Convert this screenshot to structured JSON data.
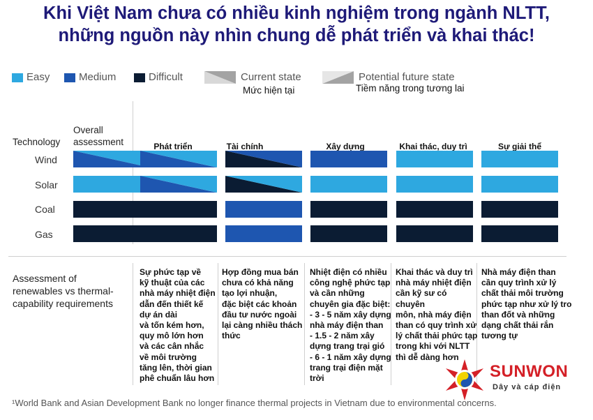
{
  "title": {
    "line1": "Khi Việt Nam chưa có nhiều kinh nghiệm trong ngành NLTT,",
    "line2": "những nguồn này nhìn chung dễ phát triển và khai thác!"
  },
  "legend": {
    "easy": "Easy",
    "medium": "Medium",
    "difficult": "Difficult",
    "current_state": "Current state",
    "current_state_vi": "Mức hiện tại",
    "future_state": "Potential future state",
    "future_state_vi": "Tiềm năng trong tương lai"
  },
  "colors": {
    "easy": "#2ea8e0",
    "medium": "#1e56b0",
    "difficult": "#0b1c33",
    "title": "#1e1a78",
    "logo_red": "#d42027"
  },
  "headers": {
    "technology": "Technology",
    "overall_line1": "Overall",
    "overall_line2": "assessment"
  },
  "columns": [
    "Phát triển",
    "Tài chính",
    "Xây dựng",
    "Khai thác, duy trì",
    "Sự giải thể"
  ],
  "rows": [
    {
      "label": "Wind",
      "overall": [
        "medium",
        "easy"
      ],
      "cells": [
        [
          "medium",
          "easy"
        ],
        [
          "difficult",
          "medium"
        ],
        [
          "medium"
        ],
        [
          "easy"
        ],
        [
          "easy"
        ]
      ]
    },
    {
      "label": "Solar",
      "overall": [
        "easy"
      ],
      "cells": [
        [
          "medium",
          "easy"
        ],
        [
          "difficult",
          "easy"
        ],
        [
          "easy"
        ],
        [
          "easy"
        ],
        [
          "easy"
        ]
      ]
    },
    {
      "label": "Coal",
      "overall": [
        "difficult"
      ],
      "cells": [
        [
          "difficult"
        ],
        [
          "medium"
        ],
        [
          "difficult"
        ],
        [
          "difficult"
        ],
        [
          "difficult"
        ]
      ]
    },
    {
      "label": "Gas",
      "overall": [
        "difficult"
      ],
      "cells": [
        [
          "difficult"
        ],
        [
          "medium"
        ],
        [
          "difficult"
        ],
        [
          "difficult"
        ],
        [
          "difficult"
        ]
      ]
    }
  ],
  "assessment": {
    "line1": "Assessment of",
    "line2": "renewables vs thermal-",
    "line3": "capability requirements"
  },
  "descriptions": [
    "Sự phức tạp về\nkỹ thuật của các\nnhà máy nhiệt điện\ndẫn đến thiết kế\ndự án dài\nvà tốn kém hơn,\nquy mô lớn hơn\nvà các cân nhắc\nvề môi trường\ntăng lên, thời gian\nphê chuẩn lâu hơn",
    "Hợp đồng mua bán\nchưa có khả năng\ntạo lợi nhuận,\nđặc biệt các khoản\nđầu tư nước ngoài\nlại càng nhiều thách\nthức",
    "Nhiệt điện có nhiều\ncông nghệ phức tạp\nvà cần những\nchuyên gia đặc biệt:\n- 3 - 5 năm xây dựng\nnhà máy điện than\n- 1.5 - 2 năm xây\ndựng trang trại gió\n- 6 - 1 năm xây dựng\ntrang trại điện mặt\n trời",
    "Khai thác và duy trì\nnhà máy nhiệt điện\ncần kỹ sư có chuyên\nmôn, nhà máy điện\nthan có quy trình xử\nlý chất thải phức tạp\ntrong khi với NLTT\nthì dễ dàng hơn",
    "Nhà máy điện than\ncần quy trình xử lý\nchất thải môi trường\nphức tạp như xử lý tro\nthan đốt và những\ndạng chất thải rắn\ntương tự"
  ],
  "footnote": "¹World Bank and Asian Development Bank no longer finance thermal projects in Vietnam due to environmental concerns.",
  "logo": {
    "name": "SUNWON",
    "tagline": "Dây và cáp điện"
  }
}
